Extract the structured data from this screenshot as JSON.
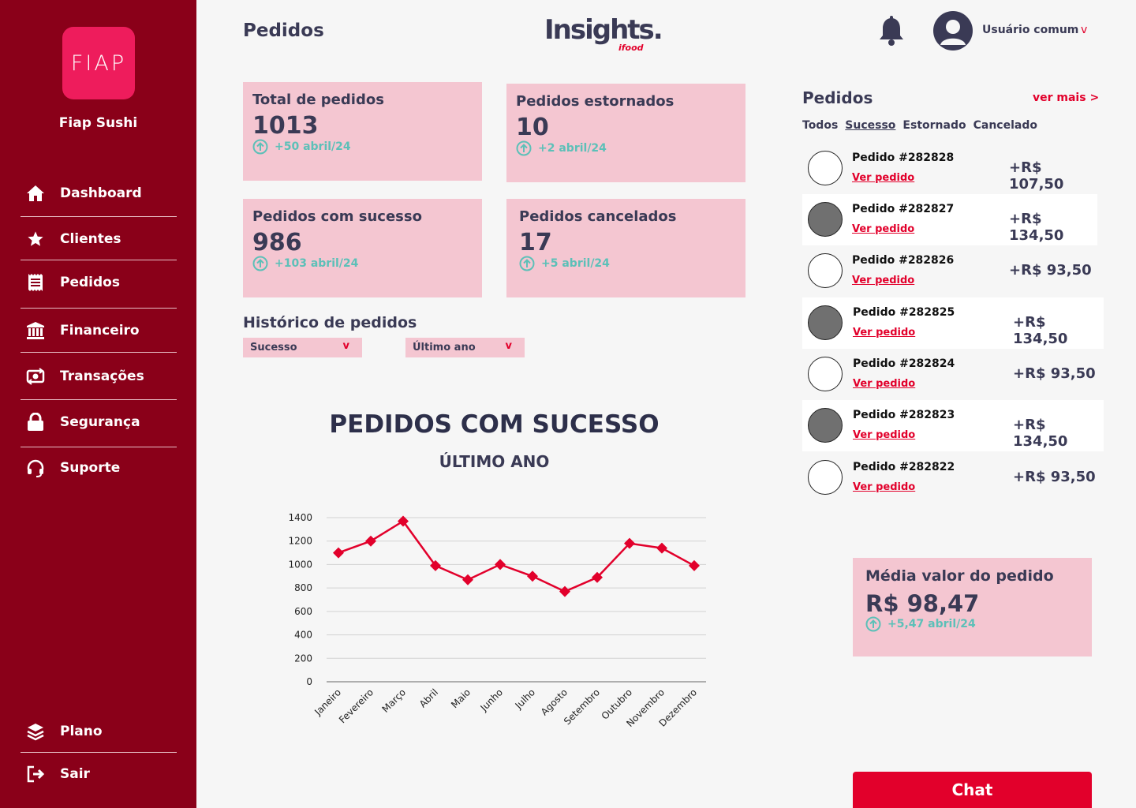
{
  "sidebar": {
    "logo_text": "FIAP",
    "store_name": "Fiap Sushi",
    "items": [
      {
        "label": "Dashboard",
        "icon": "home-icon"
      },
      {
        "label": "Clientes",
        "icon": "star-icon"
      },
      {
        "label": "Pedidos",
        "icon": "receipt-icon"
      },
      {
        "label": "Financeiro",
        "icon": "bank-icon"
      },
      {
        "label": "Transações",
        "icon": "money-exchange-icon"
      },
      {
        "label": "Segurança",
        "icon": "lock-icon"
      },
      {
        "label": "Suporte",
        "icon": "headset-icon"
      }
    ],
    "bottom": [
      {
        "label": "Plano",
        "icon": "layers-icon"
      },
      {
        "label": "Sair",
        "icon": "logout-icon"
      }
    ]
  },
  "header": {
    "title": "Pedidos",
    "brand": "Insights.",
    "brand_sub": "ifood",
    "user_name": "Usuário comum",
    "user_chevron": "v"
  },
  "stats": [
    {
      "label": "Total de pedidos",
      "value": "1013",
      "trend": "+50 abril/24"
    },
    {
      "label": "Pedidos estornados",
      "value": "10",
      "trend": "+2 abril/24"
    },
    {
      "label": "Pedidos com sucesso",
      "value": "986",
      "trend": "+103 abril/24"
    },
    {
      "label": "Pedidos cancelados",
      "value": "17",
      "trend": "+5 abril/24"
    }
  ],
  "history": {
    "title": "Histórico de pedidos",
    "status_select": "Sucesso",
    "period_select": "Último ano",
    "chevron": "v"
  },
  "chart_data": {
    "type": "line",
    "title": "PEDIDOS COM SUCESSO",
    "subtitle": "ÚLTIMO ANO",
    "categories": [
      "Janeiro",
      "Fevereiro",
      "Março",
      "Abril",
      "Maio",
      "Junho",
      "Julho",
      "Agosto",
      "Setembro",
      "Outubro",
      "Novembro",
      "Dezembro"
    ],
    "series": [
      {
        "values": [
          1100,
          1200,
          1370,
          990,
          870,
          1000,
          900,
          770,
          890,
          1180,
          1140,
          990
        ]
      }
    ],
    "ylim": [
      0,
      1400
    ],
    "yticks": [
      0,
      200,
      400,
      600,
      800,
      1000,
      1200,
      1400
    ],
    "grid": true,
    "line_color": "#e2002b",
    "marker": "diamond"
  },
  "orders": {
    "title": "Pedidos",
    "see_more": "ver mais  >",
    "filters": [
      "Todos",
      "Sucesso",
      "Estornado",
      "Cancelado"
    ],
    "active_filter": "Sucesso",
    "link_label": "Ver pedido",
    "items": [
      {
        "id": "Pedido #282828",
        "amount": "+R$ 107,50"
      },
      {
        "id": "Pedido #282827",
        "amount": "+R$ 134,50"
      },
      {
        "id": "Pedido #282826",
        "amount": "+R$ 93,50"
      },
      {
        "id": "Pedido #282825",
        "amount": "+R$ 134,50"
      },
      {
        "id": "Pedido #282824",
        "amount": "+R$ 93,50"
      },
      {
        "id": "Pedido #282823",
        "amount": "+R$ 134,50"
      },
      {
        "id": "Pedido #282822",
        "amount": "+R$ 93,50"
      }
    ]
  },
  "average": {
    "label": "Média valor do  pedido",
    "value": "R$ 98,47",
    "trend": "+5,47 abril/24"
  },
  "chat": {
    "label": "Chat"
  },
  "colors": {
    "sidebar": "#8a0019",
    "accent": "#e2002b",
    "card": "#f4c6d1",
    "trend": "#5cc0b8",
    "text": "#3a3a55"
  }
}
